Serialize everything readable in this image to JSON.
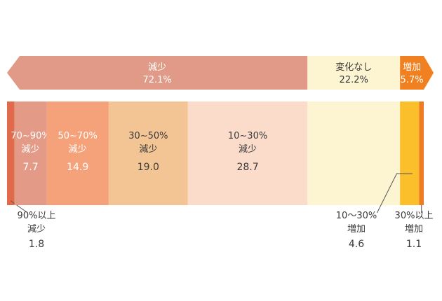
{
  "chart_data": {
    "type": "bar",
    "title": "",
    "xlabel": "",
    "ylabel": "",
    "xlim": [
      0,
      100
    ],
    "unit": "%",
    "summary": [
      {
        "label": "減少",
        "value_text": "72.1%",
        "value": 72.1,
        "color": "#e09a87",
        "text_color": "#ffffff",
        "shape": "arrow-left"
      },
      {
        "label": "変化なし",
        "value_text": "22.2%",
        "value": 22.2,
        "color": "#fdf4d2",
        "text_color": "#3a3a3a",
        "shape": "box"
      },
      {
        "label": "増加",
        "value_text": "5.7%",
        "value": 5.7,
        "color": "#f08020",
        "text_color": "#ffffff",
        "shape": "arrow-right"
      }
    ],
    "segments": [
      {
        "label_lines": [
          "90%以上",
          "減少"
        ],
        "value": 1.8,
        "value_text": "1.8",
        "color": "#e06a4a",
        "label_pos": "below-left",
        "text_color": "#3a3a3a"
      },
      {
        "label_lines": [
          "70~90%",
          "減少"
        ],
        "value": 7.7,
        "value_text": "7.7",
        "color": "#e39a87",
        "label_pos": "inside",
        "text_color": "#ffffff"
      },
      {
        "label_lines": [
          "50~70%",
          "減少"
        ],
        "value": 14.9,
        "value_text": "14.9",
        "color": "#f5a27a",
        "label_pos": "inside",
        "text_color": "#ffffff"
      },
      {
        "label_lines": [
          "30~50%",
          "減少"
        ],
        "value": 19.0,
        "value_text": "19.0",
        "color": "#f3c594",
        "label_pos": "inside",
        "text_color": "#3a3a3a"
      },
      {
        "label_lines": [
          "10~30%",
          "減少"
        ],
        "value": 28.7,
        "value_text": "28.7",
        "color": "#fbdccb",
        "label_pos": "inside",
        "text_color": "#3a3a3a"
      },
      {
        "label_lines": [],
        "value": 22.2,
        "value_text": "",
        "color": "#fdf4d2",
        "label_pos": "none",
        "text_color": "#3a3a3a"
      },
      {
        "label_lines": [
          "10～30%",
          "増加"
        ],
        "value": 4.6,
        "value_text": "4.6",
        "color": "#fbbf2c",
        "label_pos": "below-leader",
        "text_color": "#3a3a3a"
      },
      {
        "label_lines": [
          "30%以上",
          "増加"
        ],
        "value": 1.1,
        "value_text": "1.1",
        "color": "#ef7c25",
        "label_pos": "below",
        "text_color": "#3a3a3a"
      }
    ]
  }
}
